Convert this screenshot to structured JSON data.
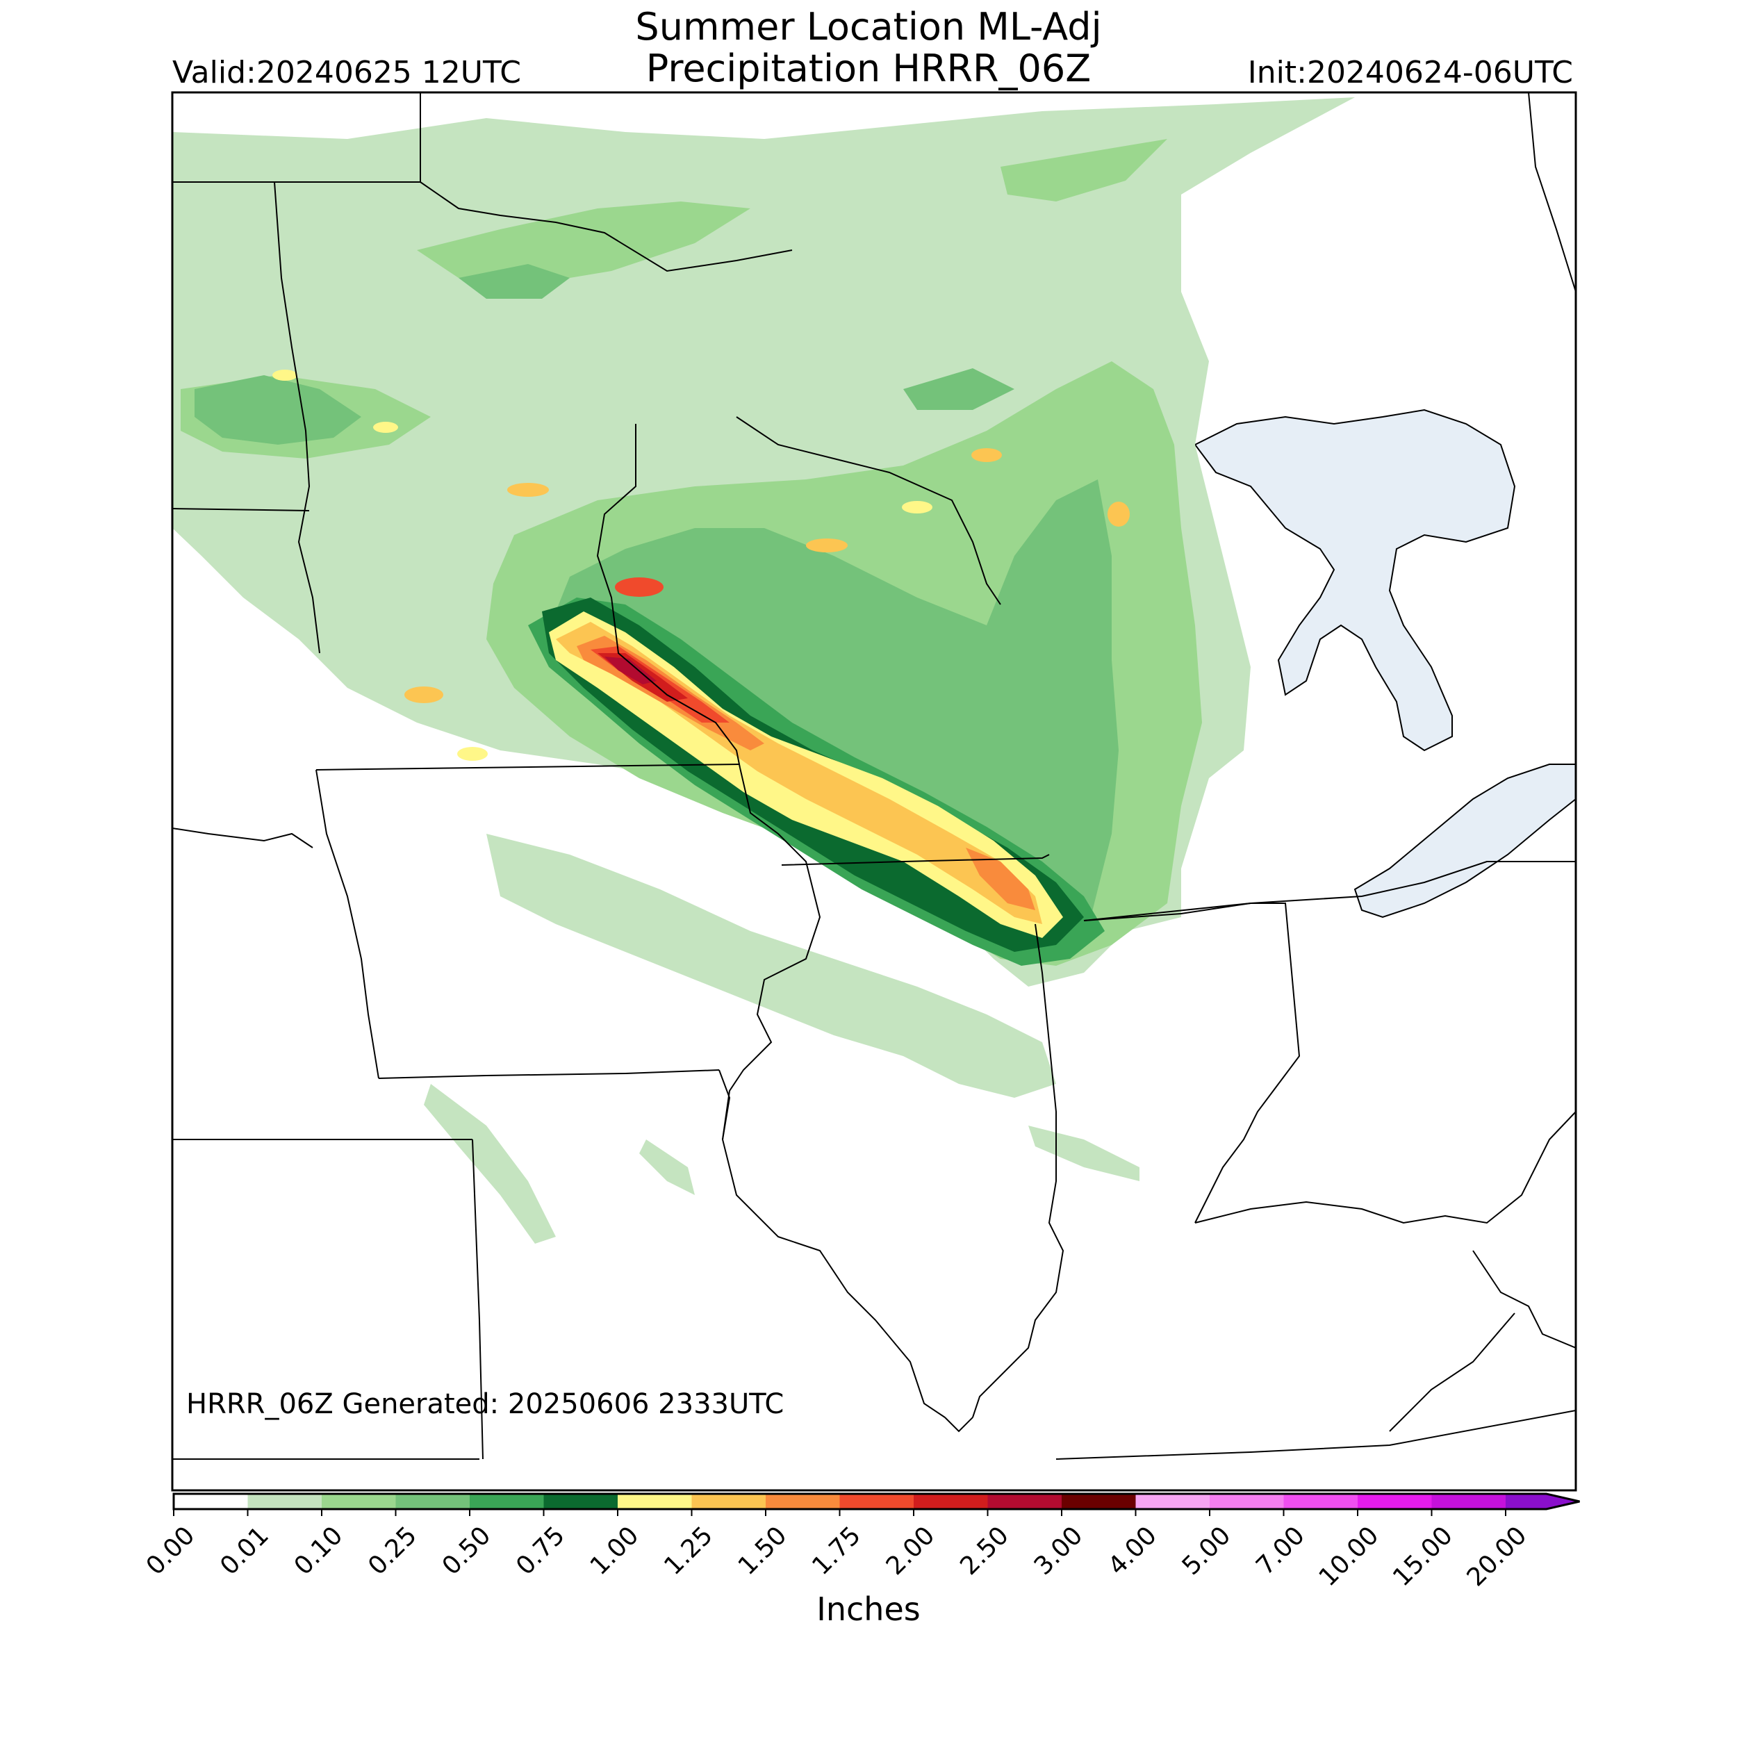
{
  "header": {
    "title_line1": "Summer Location ML-Adj",
    "title_line2": "Precipitation HRRR_06Z",
    "valid": "Valid:20240625 12UTC",
    "init": "Init:20240624-06UTC"
  },
  "footer_note": "HRRR_06Z Generated: 20250606 2333UTC",
  "colorbar": {
    "label": "Inches",
    "ticks": [
      "0.00",
      "0.01",
      "0.10",
      "0.25",
      "0.50",
      "0.75",
      "1.00",
      "1.25",
      "1.50",
      "1.75",
      "2.00",
      "2.50",
      "3.00",
      "4.00",
      "5.00",
      "7.00",
      "10.00",
      "15.00",
      "20.00"
    ],
    "colors": [
      "#ffffff",
      "#c5e4c0",
      "#9bd78e",
      "#74c27a",
      "#3aa556",
      "#0b6a2f",
      "#fff788",
      "#fcc552",
      "#f98b3c",
      "#f04a2c",
      "#d11d1d",
      "#b20b30",
      "#6b0000",
      "#f6a5f2",
      "#f57ff0",
      "#f04ff0",
      "#e51ced",
      "#c511dc",
      "#8a0fcc"
    ],
    "extend": "max"
  },
  "map_colors": {
    "water": "#e6eef6",
    "border": "#000000"
  }
}
